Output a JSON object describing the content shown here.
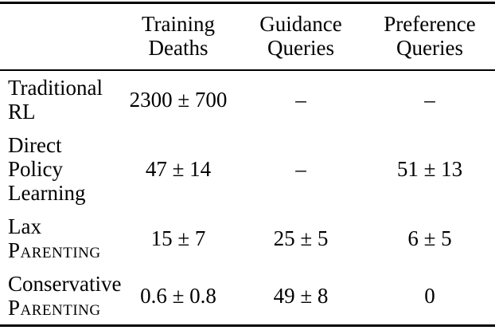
{
  "table": {
    "header": [
      {
        "line1": "Training",
        "line2": "Deaths"
      },
      {
        "line1": "Guidance",
        "line2": "Queries"
      },
      {
        "line1": "Preference",
        "line2": "Queries"
      }
    ],
    "rows": [
      {
        "label": "Traditional RL",
        "label_sc": "",
        "values": [
          "2300 ± 700",
          "–",
          "–"
        ]
      },
      {
        "label": "Direct Policy Learning",
        "label_sc": "",
        "values": [
          "47 ± 14",
          "–",
          "51 ± 13"
        ]
      },
      {
        "label": "Lax",
        "label_sc": "Parenting",
        "values": [
          "15 ± 7",
          "25 ± 5",
          "6 ± 5"
        ]
      },
      {
        "label": "Conservative",
        "label_sc": "Parenting",
        "values": [
          "0.6 ± 0.8",
          "49 ± 8",
          "0"
        ]
      }
    ],
    "colors": {
      "text": "#000000",
      "rule": "#000000",
      "background": "#ffffff"
    }
  }
}
